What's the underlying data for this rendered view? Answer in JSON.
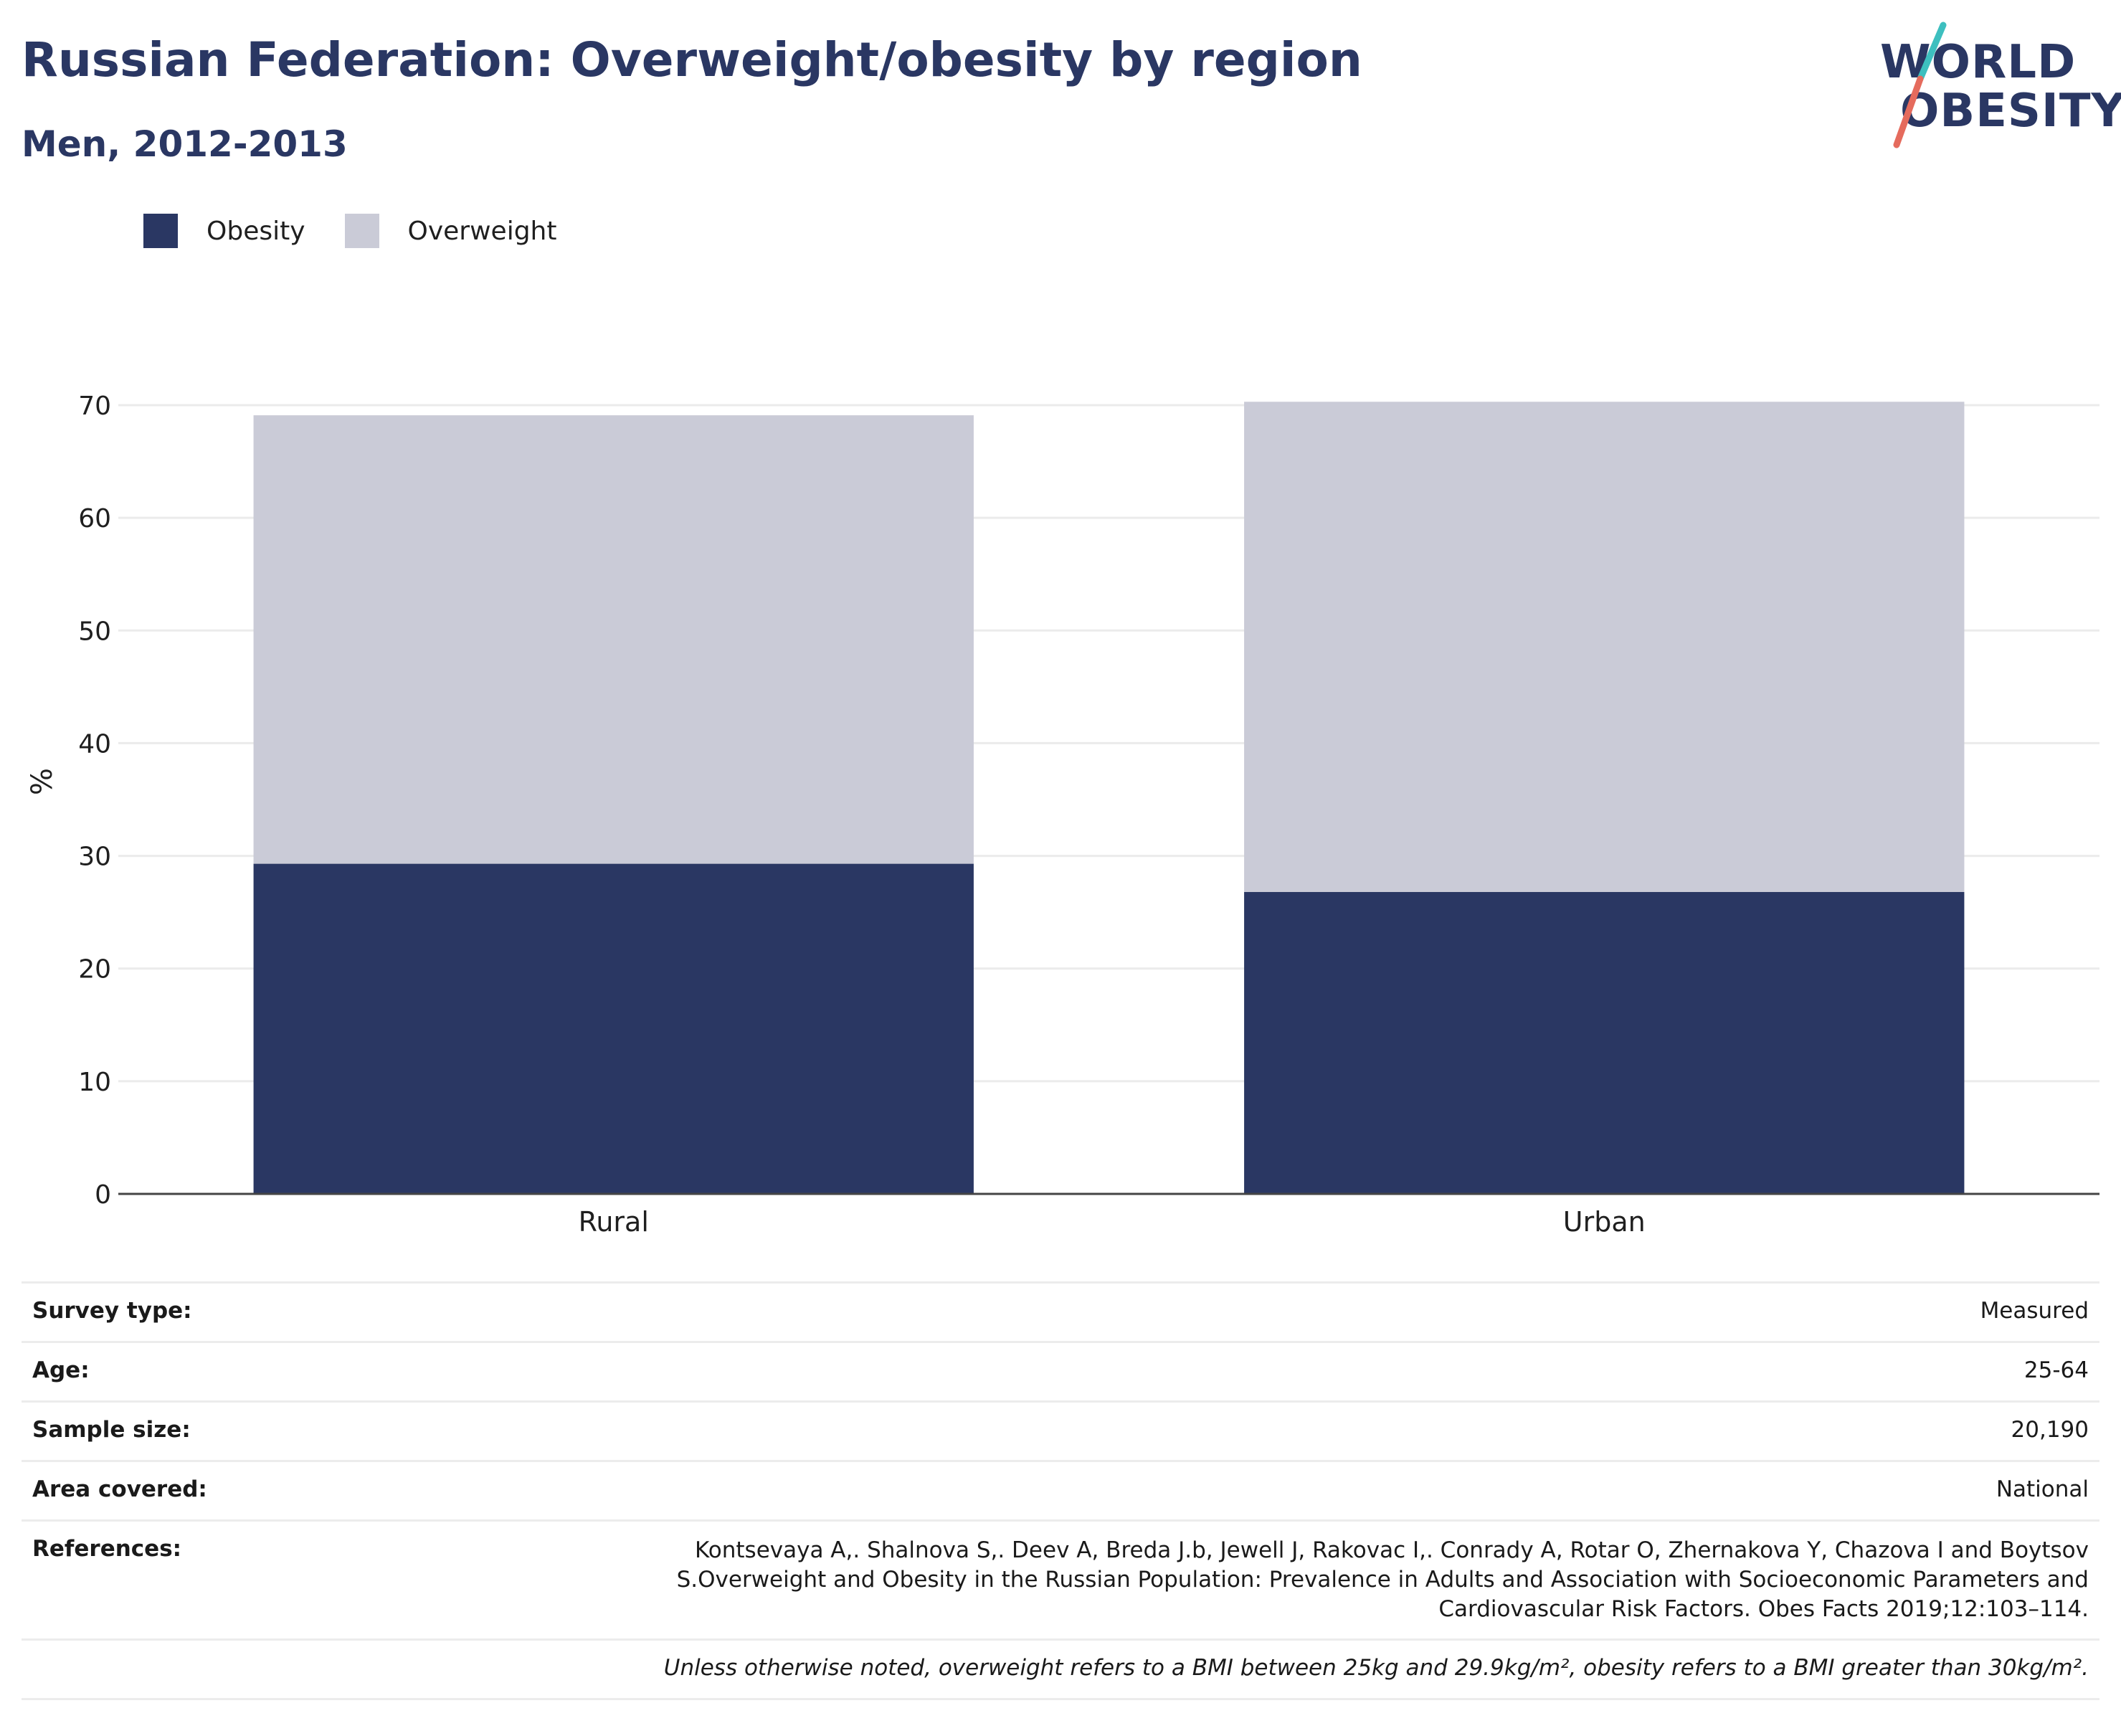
{
  "title": "Russian Federation: Overweight/obesity by region",
  "subtitle": "Men, 2012-2013",
  "logo": {
    "line1": "WORLD",
    "line2": "OBESITY",
    "slash_color_top": "#3dbfbf",
    "slash_color_bottom": "#e56b5d"
  },
  "legend": [
    {
      "label": "Obesity",
      "color": "#2a3763"
    },
    {
      "label": "Overweight",
      "color": "#cacbd7"
    }
  ],
  "chart_data": {
    "type": "bar",
    "stacked": true,
    "categories": [
      "Rural",
      "Urban"
    ],
    "series": [
      {
        "name": "Obesity",
        "values": [
          29.3,
          26.8
        ],
        "color": "#2a3763"
      },
      {
        "name": "Overweight",
        "values": [
          39.8,
          43.5
        ],
        "color": "#cacbd7"
      }
    ],
    "ylabel": "%",
    "xlabel": "",
    "ylim": [
      0,
      70
    ],
    "yticks": [
      0,
      10,
      20,
      30,
      40,
      50,
      60,
      70
    ],
    "grid": true,
    "legend_position": "top-left"
  },
  "meta": {
    "survey_type": {
      "label": "Survey type:",
      "value": "Measured"
    },
    "age": {
      "label": "Age:",
      "value": "25-64"
    },
    "sample_size": {
      "label": "Sample size:",
      "value": "20,190"
    },
    "area": {
      "label": "Area covered:",
      "value": "National"
    },
    "references": {
      "label": "References:",
      "value": "Kontsevaya A,. Shalnova S,. Deev A, Breda J.b, Jewell J, Rakovac I,. Conrady A, Rotar O, Zhernakova Y, Chazova I and Boytsov S.Overweight and Obesity in the Russian Population: Prevalence in Adults and Association with Socioeconomic Parameters and Cardiovascular Risk Factors. Obes Facts 2019;12:103–114."
    },
    "note": "Unless otherwise noted, overweight refers to a BMI between 25kg and 29.9kg/m², obesity refers to a BMI greater than 30kg/m²."
  }
}
